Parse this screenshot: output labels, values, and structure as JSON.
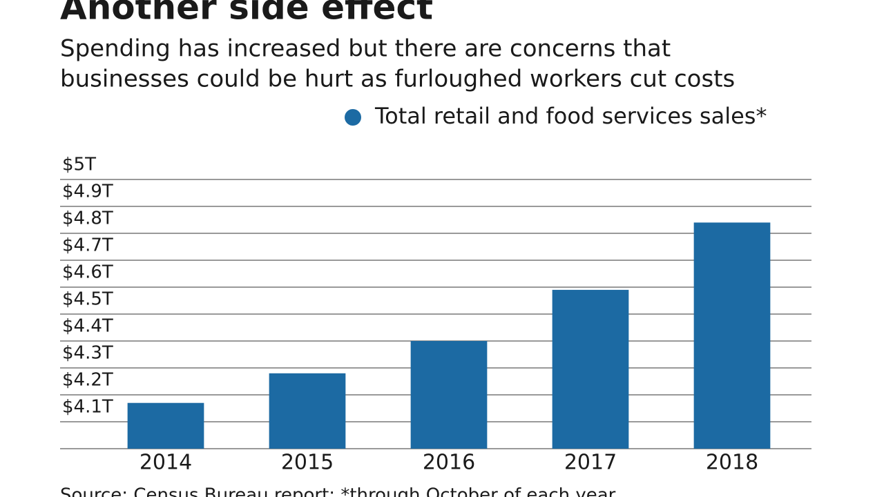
{
  "chart_data": {
    "type": "bar",
    "title": "Another side effect",
    "subtitle": [
      "Spending has increased but there are concerns that",
      "businesses could be hurt as furloughed workers cut costs"
    ],
    "categories": [
      "2014",
      "2015",
      "2016",
      "2017",
      "2018"
    ],
    "series": [
      {
        "name": "Total retail and food services sales*",
        "color": "#1c6aa3",
        "values": [
          4.17,
          4.28,
          4.4,
          4.59,
          4.84
        ]
      }
    ],
    "ylim": [
      4.0,
      5.0
    ],
    "yticks": [
      {
        "value": 4.1,
        "label": "$4.1T"
      },
      {
        "value": 4.2,
        "label": "$4.2T"
      },
      {
        "value": 4.3,
        "label": "$4.3T"
      },
      {
        "value": 4.4,
        "label": "$4.4T"
      },
      {
        "value": 4.5,
        "label": "$4.5T"
      },
      {
        "value": 4.6,
        "label": "$4.6T"
      },
      {
        "value": 4.7,
        "label": "$4.7T"
      },
      {
        "value": 4.8,
        "label": "$4.8T"
      },
      {
        "value": 4.9,
        "label": "$4.9T"
      },
      {
        "value": 5.0,
        "label": "$5T"
      }
    ],
    "grid": true,
    "source": "Source: Census Bureau report; *through October of each year"
  }
}
